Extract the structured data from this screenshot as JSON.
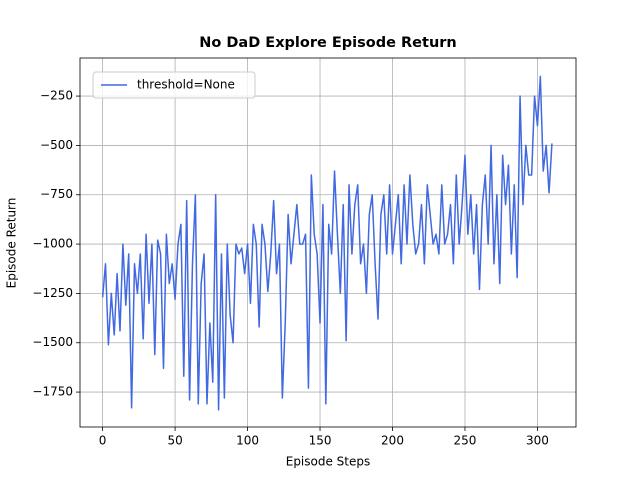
{
  "chart_data": {
    "type": "line",
    "title": "No DaD Explore Episode Return",
    "x_label": "Episode Steps",
    "y_label": "Episode Return",
    "x": [
      0,
      2,
      4,
      6,
      8,
      10,
      12,
      14,
      16,
      18,
      20,
      22,
      24,
      26,
      28,
      30,
      32,
      34,
      36,
      38,
      40,
      42,
      44,
      46,
      48,
      50,
      52,
      54,
      56,
      58,
      60,
      62,
      64,
      66,
      68,
      70,
      72,
      74,
      76,
      78,
      80,
      82,
      84,
      86,
      88,
      90,
      92,
      94,
      96,
      98,
      100,
      102,
      104,
      106,
      108,
      110,
      112,
      114,
      116,
      118,
      120,
      122,
      124,
      126,
      128,
      130,
      132,
      134,
      136,
      138,
      140,
      142,
      144,
      146,
      148,
      150,
      152,
      154,
      156,
      158,
      160,
      162,
      164,
      166,
      168,
      170,
      172,
      174,
      176,
      178,
      180,
      182,
      184,
      186,
      188,
      190,
      192,
      194,
      196,
      198,
      200,
      202,
      204,
      206,
      208,
      210,
      212,
      214,
      216,
      218,
      220,
      222,
      224,
      226,
      228,
      230,
      232,
      234,
      236,
      238,
      240,
      242,
      244,
      246,
      248,
      250,
      252,
      254,
      256,
      258,
      260,
      262,
      264,
      266,
      268,
      270,
      272,
      274,
      276,
      278,
      280,
      282,
      284,
      286,
      288,
      290,
      292,
      294,
      296,
      298,
      300,
      302,
      304,
      306,
      308,
      310
    ],
    "series": [
      {
        "name": "threshold=None",
        "color": "#4169e1",
        "values": [
          -1270,
          -1100,
          -1510,
          -1250,
          -1460,
          -1150,
          -1440,
          -1000,
          -1310,
          -1050,
          -1830,
          -1100,
          -1250,
          -1050,
          -1480,
          -950,
          -1300,
          -1000,
          -1560,
          -980,
          -1050,
          -1630,
          -950,
          -1200,
          -1100,
          -1280,
          -1000,
          -900,
          -1670,
          -780,
          -1790,
          -1100,
          -750,
          -1810,
          -1200,
          -1050,
          -1810,
          -1400,
          -1700,
          -750,
          -1840,
          -1050,
          -1780,
          -1000,
          -1360,
          -1500,
          -1000,
          -1050,
          -1020,
          -1150,
          -1000,
          -1300,
          -900,
          -1000,
          -1420,
          -900,
          -1000,
          -1240,
          -1050,
          -780,
          -1150,
          -1000,
          -1780,
          -1400,
          -850,
          -1100,
          -950,
          -800,
          -1000,
          -1000,
          -950,
          -1730,
          -650,
          -950,
          -1050,
          -1400,
          -800,
          -1810,
          -900,
          -1050,
          -630,
          -950,
          -1250,
          -800,
          -1490,
          -700,
          -1050,
          -800,
          -700,
          -1100,
          -1000,
          -1250,
          -850,
          -750,
          -1100,
          -1380,
          -850,
          -750,
          -1050,
          -700,
          -1050,
          -900,
          -750,
          -1100,
          -700,
          -1000,
          -650,
          -900,
          -1050,
          -1000,
          -800,
          -1100,
          -700,
          -850,
          -1000,
          -950,
          -1050,
          -700,
          -1000,
          -950,
          -800,
          -1100,
          -650,
          -1000,
          -800,
          -550,
          -950,
          -750,
          -1050,
          -800,
          -1230,
          -800,
          -650,
          -1000,
          -500,
          -1100,
          -750,
          -1200,
          -550,
          -800,
          -600,
          -1050,
          -700,
          -1170,
          -250,
          -800,
          -500,
          -650,
          -650,
          -250,
          -400,
          -150,
          -630,
          -500,
          -740,
          -490
        ]
      }
    ],
    "xlim": [
      -15.6,
      326.6
    ],
    "ylim": [
      -1927,
      -57
    ],
    "xticks": [
      0,
      50,
      100,
      150,
      200,
      250,
      300
    ],
    "yticks": [
      {
        "value": -1750,
        "label": "−1750"
      },
      {
        "value": -1500,
        "label": "−1500"
      },
      {
        "value": -1250,
        "label": "−1250"
      },
      {
        "value": -1000,
        "label": "−1000"
      },
      {
        "value": -750,
        "label": "−750"
      },
      {
        "value": -500,
        "label": "−500"
      },
      {
        "value": -250,
        "label": "−250"
      }
    ],
    "grid": true,
    "legend": "upper left"
  }
}
